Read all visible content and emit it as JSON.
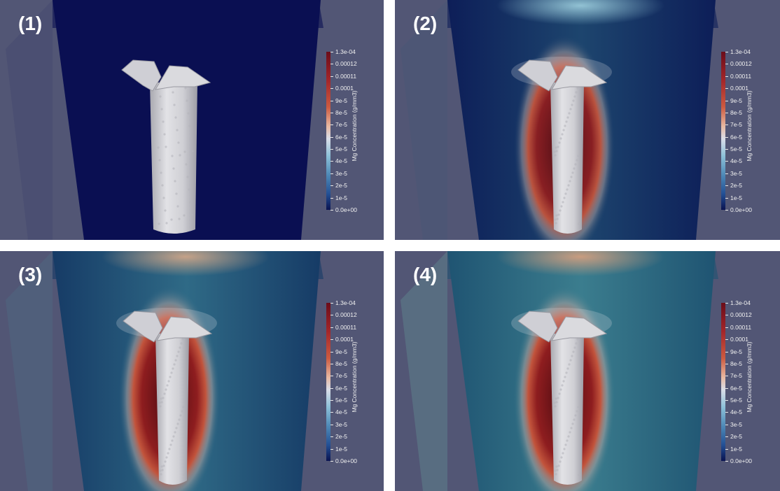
{
  "panels": [
    {
      "label": "(1)",
      "stage": 0
    },
    {
      "label": "(2)",
      "stage": 1
    },
    {
      "label": "(3)",
      "stage": 2
    },
    {
      "label": "(4)",
      "stage": 3
    }
  ],
  "colorbar": {
    "title": "Mg Concentration (g/mm3)",
    "labels": [
      "1.3e-04",
      "0.00012",
      "0.00011",
      "0.0001",
      "9e-5",
      "8e-5",
      "7e-5",
      "6e-5",
      "5e-5",
      "4e-5",
      "3e-5",
      "2e-5",
      "1e-5",
      "0.0e+00"
    ]
  },
  "colors": {
    "background": "#525675",
    "low": "#0a1350",
    "high": "#6b0d1a",
    "screw": "#d4d4d8"
  }
}
